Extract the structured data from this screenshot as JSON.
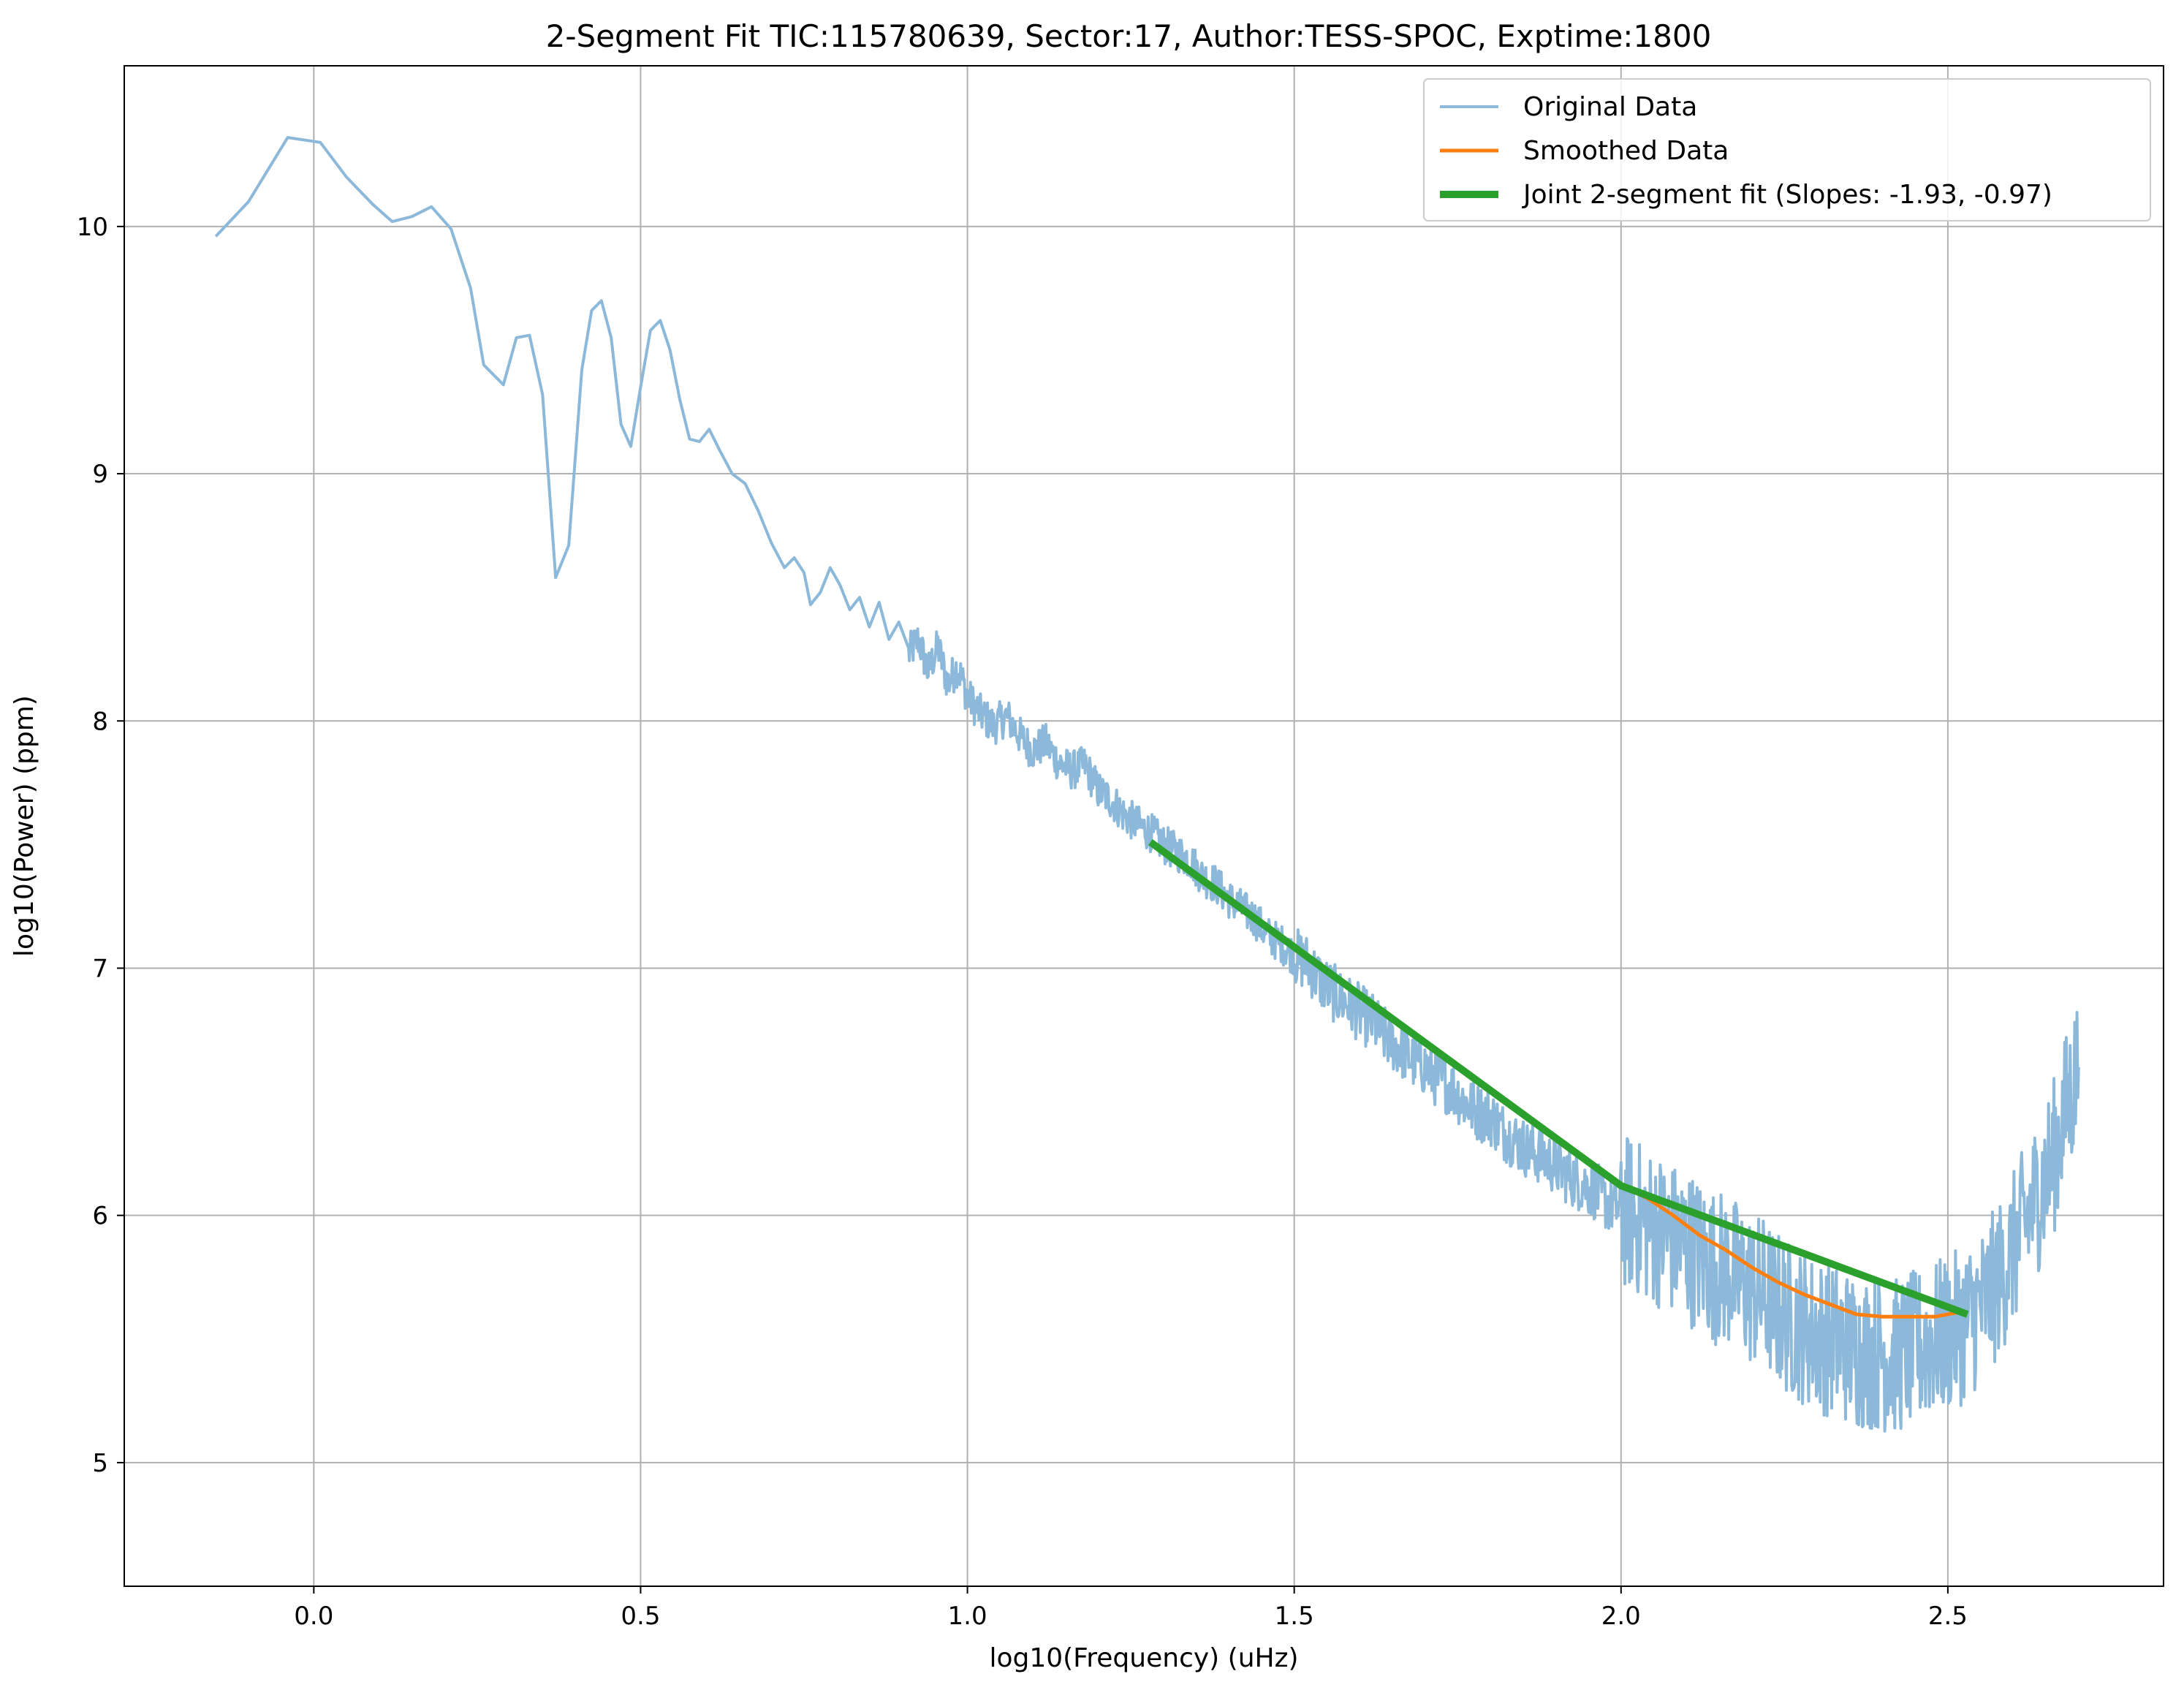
{
  "chart_data": {
    "type": "line",
    "title": "2-Segment Fit TIC:115780639, Sector:17, Author:TESS-SPOC, Exptime:1800",
    "xlabel": "log10(Frequency) (uHz)",
    "ylabel": "log10(Power) (ppm)",
    "xlim": [
      -0.29,
      2.83
    ],
    "ylim": [
      4.5,
      10.65
    ],
    "xticks": [
      0.0,
      0.5,
      1.0,
      1.5,
      2.0,
      2.5
    ],
    "xtick_labels": [
      "0.0",
      "0.5",
      "1.0",
      "1.5",
      "2.0",
      "2.5"
    ],
    "yticks": [
      5,
      6,
      7,
      8,
      9,
      10
    ],
    "ytick_labels": [
      "5",
      "6",
      "7",
      "8",
      "9",
      "10"
    ],
    "grid": true,
    "legend_position": "top-right",
    "series": [
      {
        "name": "Original Data",
        "color": "#8cb8d9",
        "points": [
          [
            -0.15,
            9.96
          ],
          [
            -0.1,
            10.1
          ],
          [
            -0.04,
            10.36
          ],
          [
            0.01,
            10.34
          ],
          [
            0.05,
            10.2
          ],
          [
            0.09,
            10.09
          ],
          [
            0.12,
            10.02
          ],
          [
            0.15,
            10.04
          ],
          [
            0.18,
            10.08
          ],
          [
            0.21,
            9.99
          ],
          [
            0.24,
            9.75
          ],
          [
            0.26,
            9.44
          ],
          [
            0.29,
            9.36
          ],
          [
            0.31,
            9.55
          ],
          [
            0.33,
            9.56
          ],
          [
            0.35,
            9.32
          ],
          [
            0.37,
            8.58
          ],
          [
            0.39,
            8.71
          ],
          [
            0.41,
            9.42
          ],
          [
            0.425,
            9.66
          ],
          [
            0.44,
            9.7
          ],
          [
            0.455,
            9.55
          ],
          [
            0.47,
            9.2
          ],
          [
            0.485,
            9.11
          ],
          [
            0.5,
            9.35
          ],
          [
            0.515,
            9.58
          ],
          [
            0.53,
            9.62
          ],
          [
            0.545,
            9.5
          ],
          [
            0.56,
            9.3
          ],
          [
            0.575,
            9.14
          ],
          [
            0.59,
            9.13
          ],
          [
            0.605,
            9.18
          ],
          [
            0.62,
            9.1
          ],
          [
            0.64,
            9.0
          ],
          [
            0.66,
            8.96
          ],
          [
            0.68,
            8.85
          ],
          [
            0.7,
            8.72
          ],
          [
            0.72,
            8.62
          ],
          [
            0.735,
            8.66
          ],
          [
            0.75,
            8.6
          ],
          [
            0.76,
            8.47
          ],
          [
            0.775,
            8.52
          ],
          [
            0.79,
            8.62
          ],
          [
            0.805,
            8.55
          ],
          [
            0.82,
            8.45
          ],
          [
            0.835,
            8.5
          ],
          [
            0.85,
            8.38
          ],
          [
            0.865,
            8.48
          ],
          [
            0.88,
            8.33
          ],
          [
            0.895,
            8.4
          ],
          [
            0.91,
            8.27
          ],
          [
            0.925,
            8.33
          ],
          [
            0.94,
            8.2
          ],
          [
            0.955,
            8.3
          ],
          [
            0.97,
            8.15
          ],
          [
            0.985,
            8.22
          ],
          [
            1.0,
            8.1
          ],
          [
            1.02,
            8.03
          ],
          [
            1.04,
            7.98
          ],
          [
            1.06,
            8.02
          ],
          [
            1.08,
            7.94
          ],
          [
            1.1,
            7.88
          ],
          [
            1.12,
            7.91
          ],
          [
            1.14,
            7.83
          ],
          [
            1.16,
            7.8
          ],
          [
            1.18,
            7.82
          ],
          [
            1.2,
            7.72
          ],
          [
            1.22,
            7.68
          ],
          [
            1.24,
            7.62
          ],
          [
            1.26,
            7.58
          ],
          [
            1.28,
            7.55
          ],
          [
            1.3,
            7.5
          ],
          [
            1.32,
            7.47
          ],
          [
            1.34,
            7.44
          ],
          [
            1.36,
            7.37
          ],
          [
            1.38,
            7.34
          ],
          [
            1.4,
            7.28
          ],
          [
            1.42,
            7.24
          ],
          [
            1.44,
            7.2
          ],
          [
            1.46,
            7.13
          ],
          [
            1.48,
            7.1
          ],
          [
            1.5,
            7.05
          ],
          [
            1.52,
            7.02
          ],
          [
            1.54,
            6.95
          ],
          [
            1.56,
            6.9
          ],
          [
            1.58,
            6.86
          ],
          [
            1.6,
            6.82
          ],
          [
            1.62,
            6.78
          ],
          [
            1.64,
            6.72
          ],
          [
            1.66,
            6.68
          ],
          [
            1.68,
            6.63
          ],
          [
            1.7,
            6.6
          ],
          [
            1.72,
            6.55
          ],
          [
            1.74,
            6.52
          ],
          [
            1.76,
            6.46
          ],
          [
            1.78,
            6.42
          ],
          [
            1.8,
            6.4
          ],
          [
            1.82,
            6.34
          ],
          [
            1.84,
            6.3
          ],
          [
            1.86,
            6.26
          ],
          [
            1.88,
            6.24
          ],
          [
            1.9,
            6.2
          ],
          [
            1.92,
            6.16
          ],
          [
            1.94,
            6.13
          ],
          [
            1.96,
            6.1
          ],
          [
            1.98,
            6.05
          ],
          [
            2.0,
            6.02
          ],
          [
            2.02,
            6.0
          ],
          [
            2.04,
            5.96
          ],
          [
            2.06,
            5.94
          ],
          [
            2.08,
            5.9
          ],
          [
            2.1,
            5.88
          ],
          [
            2.12,
            5.84
          ],
          [
            2.14,
            5.8
          ],
          [
            2.16,
            5.78
          ],
          [
            2.18,
            5.74
          ],
          [
            2.2,
            5.7
          ],
          [
            2.22,
            5.68
          ],
          [
            2.24,
            5.62
          ],
          [
            2.26,
            5.58
          ],
          [
            2.28,
            5.55
          ],
          [
            2.3,
            5.52
          ],
          [
            2.32,
            5.5
          ],
          [
            2.34,
            5.48
          ],
          [
            2.36,
            5.45
          ],
          [
            2.38,
            5.45
          ],
          [
            2.4,
            5.44
          ],
          [
            2.42,
            5.43
          ],
          [
            2.44,
            5.45
          ],
          [
            2.46,
            5.47
          ],
          [
            2.48,
            5.5
          ],
          [
            2.5,
            5.52
          ],
          [
            2.52,
            5.55
          ],
          [
            2.54,
            5.6
          ],
          [
            2.56,
            5.66
          ],
          [
            2.58,
            5.75
          ],
          [
            2.6,
            5.86
          ],
          [
            2.62,
            5.98
          ],
          [
            2.64,
            6.1
          ],
          [
            2.66,
            6.22
          ],
          [
            2.68,
            6.42
          ],
          [
            2.7,
            6.6
          ]
        ]
      },
      {
        "name": "Smoothed Data",
        "color": "#ff7f0e",
        "points": [
          [
            2.0,
            6.12
          ],
          [
            2.04,
            6.07
          ],
          [
            2.08,
            6.0
          ],
          [
            2.12,
            5.92
          ],
          [
            2.16,
            5.86
          ],
          [
            2.2,
            5.79
          ],
          [
            2.24,
            5.73
          ],
          [
            2.28,
            5.68
          ],
          [
            2.32,
            5.64
          ],
          [
            2.36,
            5.6
          ],
          [
            2.4,
            5.59
          ],
          [
            2.44,
            5.59
          ],
          [
            2.48,
            5.59
          ],
          [
            2.52,
            5.61
          ]
        ]
      },
      {
        "name": "Joint 2-segment fit (Slopes: -1.93, -0.97)",
        "color": "#2ca02c",
        "points": [
          [
            1.28,
            7.51
          ],
          [
            2.0,
            6.12
          ],
          [
            2.53,
            5.6
          ]
        ]
      }
    ]
  }
}
